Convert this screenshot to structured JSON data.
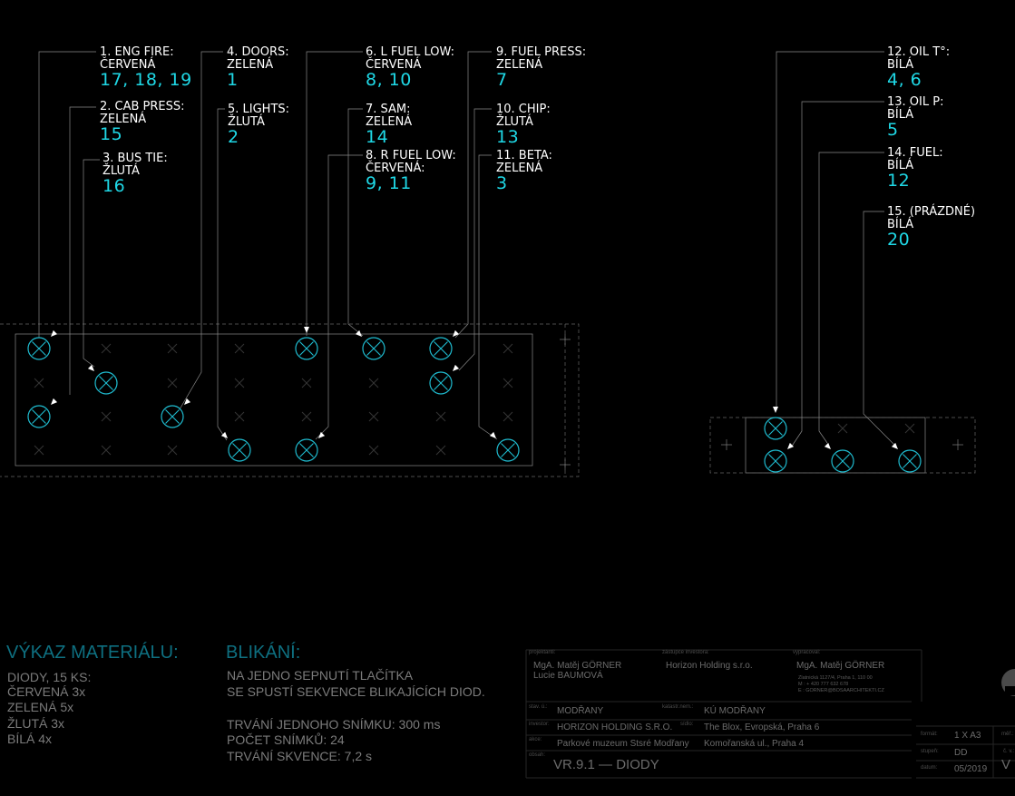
{
  "colors": {
    "background": "#000000",
    "label_text": "#ffffff",
    "number_text": "#1fd8e6",
    "diode": "#1fbcd0",
    "heading": "#0e6f80",
    "body_text": "#7b7b7b",
    "lines": "#8a8a8a"
  },
  "labels": [
    {
      "title": "1. ENG FIRE:",
      "color": "ČERVENÁ",
      "nums": "17, 18, 19"
    },
    {
      "title": "2. CAB PRESS:",
      "color": "ZELENÁ",
      "nums": "15"
    },
    {
      "title": "3. BUS TIE:",
      "color": "ŽLUTÁ",
      "nums": "16"
    },
    {
      "title": "4. DOORS:",
      "color": "ZELENÁ",
      "nums": "1"
    },
    {
      "title": "5. LIGHTS:",
      "color": "ŽLUTÁ",
      "nums": "2"
    },
    {
      "title": "6. L FUEL LOW:",
      "color": "ČERVENÁ",
      "nums": "8, 10"
    },
    {
      "title": "7. SAM:",
      "color": "ZELENÁ",
      "nums": "14"
    },
    {
      "title": "8. R FUEL LOW:",
      "color": "ČERVENÁ:",
      "nums": "9, 11"
    },
    {
      "title": "9. FUEL PRESS:",
      "color": "ZELENÁ",
      "nums": "7"
    },
    {
      "title": "10. CHIP:",
      "color": "ŽLUTÁ",
      "nums": "13"
    },
    {
      "title": "11. BETA:",
      "color": "ZELENÁ",
      "nums": "3"
    },
    {
      "title": "12. OIL T°:",
      "color": "BÍLÁ",
      "nums": "4,  6"
    },
    {
      "title": "13. OIL P:",
      "color": "BÍLÁ",
      "nums": "5"
    },
    {
      "title": "14. FUEL:",
      "color": "BÍLÁ",
      "nums": "12"
    },
    {
      "title": "15. (PRÁZDNÉ)",
      "color": "BÍLÁ",
      "nums": "20"
    }
  ],
  "material": {
    "heading": "VÝKAZ MATERIÁLU:",
    "lines": [
      "DIODY, 15 KS:",
      "ČERVENÁ 3x",
      "ZELENÁ 5x",
      "ŽLUTÁ 3x",
      "BÍLÁ 4x"
    ]
  },
  "blink": {
    "heading": "BLIKÁNÍ:",
    "lines": [
      "NA JEDNO SEPNUTÍ TLAČÍTKA",
      "SE SPUSTÍ SEKVENCE BLIKAJÍCÍCH DIOD."
    ],
    "lines2": [
      "TRVÁNÍ JEDNOHO SNÍMKU: 300 ms",
      "POČET SNÍMKŮ: 24",
      "TRVÁNÍ SKVENCE: 7,2 s"
    ]
  },
  "titleblock": {
    "projektanti_label": "projektanti:",
    "projektanti": [
      "MgA. Matěj GÖRNER",
      "Lucie BAUMOVÁ"
    ],
    "zastupce_label": "zástupce investora:",
    "zastupce": "Horizon Holding s.r.o.",
    "vypracoval_label": "vypracoval:",
    "vypracoval": "MgA. Matěj GÖRNER",
    "address": [
      "Zlatnická 1127/4, Praha 1, 110 00",
      "M    :    + 420 777 632 678",
      "E    :    GORNER@BOSAARCHITEKTI.CZ"
    ],
    "stav_label": "stav. ú.:",
    "stav": "MODŘANY",
    "katastr_label": "katastr.nem.:",
    "katastr": "KÚ MODŘANY",
    "investor_label": "investor:",
    "investor": "HORIZON HOLDING S.R.O.",
    "sidlo_label": "sídlo:",
    "sidlo": "The Blox, Evropská, Praha 6",
    "akce_label": "akce:",
    "akce": "Parkové muzeum Stsré Modřany",
    "akce_addr": "Komořanská ul., Praha 4",
    "obsah_label": "obsah:",
    "obsah": "VR.9.1 — DIODY",
    "format_label": "formát:",
    "format": "1 X A3",
    "stupen_label": "stupeň:",
    "stupen": "DD",
    "datum_label": "datum:",
    "datum": "05/2019",
    "mer_label": "měř.:",
    "cv_label": "č. v.:",
    "cv": "V"
  }
}
